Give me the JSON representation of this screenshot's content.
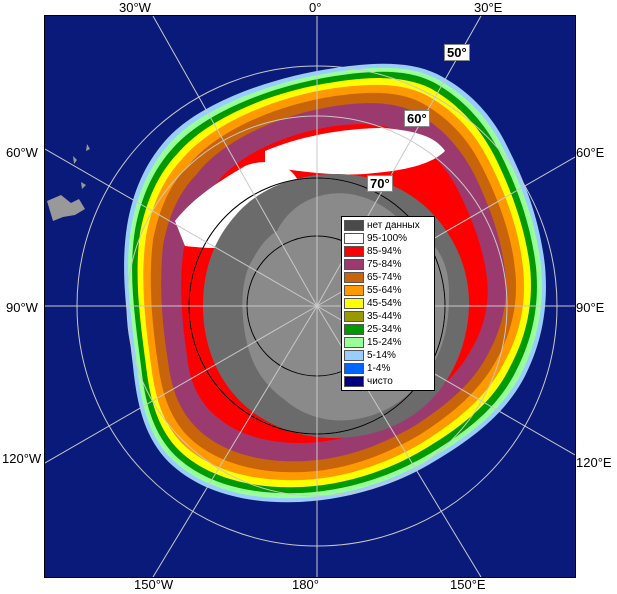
{
  "longitude_labels": {
    "top": [
      "30°W",
      "0°",
      "30°E"
    ],
    "left": [
      "60°W",
      "90°W",
      "120°W"
    ],
    "right": [
      "60°E",
      "90°E",
      "120°E"
    ],
    "bottom": [
      "150°W",
      "180°",
      "150°E"
    ]
  },
  "latitude_labels": [
    "50°",
    "60°",
    "70°"
  ],
  "legend": [
    {
      "label": "нет данных",
      "color": "#4a4a4a"
    },
    {
      "label": "95-100%",
      "color": "#ffffff"
    },
    {
      "label": "85-94%",
      "color": "#ff0000"
    },
    {
      "label": "75-84%",
      "color": "#9b3a6e"
    },
    {
      "label": "65-74%",
      "color": "#c8640a"
    },
    {
      "label": "55-64%",
      "color": "#ff9900"
    },
    {
      "label": "45-54%",
      "color": "#ffff00"
    },
    {
      "label": "35-44%",
      "color": "#999900"
    },
    {
      "label": "25-34%",
      "color": "#009900"
    },
    {
      "label": "15-24%",
      "color": "#99ff99"
    },
    {
      "label": "5-14%",
      "color": "#99ccff"
    },
    {
      "label": "1-4%",
      "color": "#0066ff"
    },
    {
      "label": "чисто",
      "color": "#000080"
    }
  ],
  "colors": {
    "ocean": "#0a1a7a",
    "land": "#808080",
    "shelf": "#6b6b6b",
    "grid": "#c8c8c8"
  }
}
